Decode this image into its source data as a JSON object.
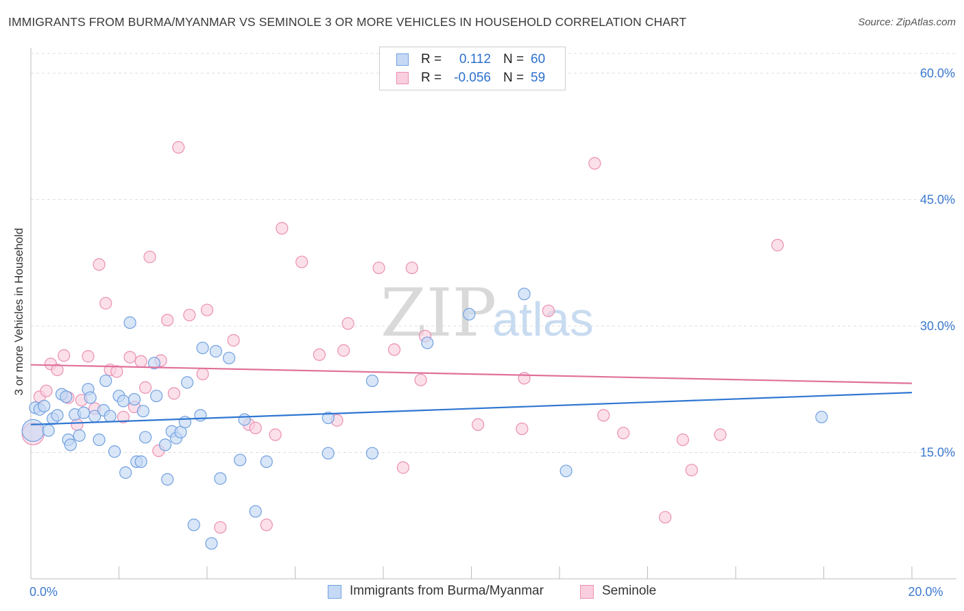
{
  "title": "IMMIGRANTS FROM BURMA/MYANMAR VS SEMINOLE 3 OR MORE VEHICLES IN HOUSEHOLD CORRELATION CHART",
  "source": "Source: ZipAtlas.com",
  "watermark": {
    "zip": "ZIP",
    "atlas": "atlas"
  },
  "stats": {
    "rows": [
      {
        "r_label": "R =",
        "r_value": "0.112",
        "n_label": "N =",
        "n_value": "60",
        "color": "#6fa0e0",
        "fill": "#c5d9f5"
      },
      {
        "r_label": "R =",
        "r_value": "-0.056",
        "n_label": "N =",
        "n_value": "59",
        "color": "#eb8fb0",
        "fill": "#f9cfdf"
      }
    ]
  },
  "legend": {
    "blue_label": "Immigrants from Burma/Myanmar",
    "pink_label": "Seminole"
  },
  "chart_data": {
    "type": "scatter",
    "title": "IMMIGRANTS FROM BURMA/MYANMAR VS SEMINOLE 3 OR MORE VEHICLES IN HOUSEHOLD CORRELATION CHART",
    "xlabel": "",
    "ylabel": "3 or more Vehicles in Household",
    "xlim": [
      0,
      20
    ],
    "ylim": [
      0,
      63
    ],
    "x_tick_labels": [
      {
        "value": 0,
        "label": "0.0%"
      },
      {
        "value": 20,
        "label": "20.0%"
      }
    ],
    "y_tick_labels": [
      {
        "value": 15,
        "label": "15.0%"
      },
      {
        "value": 30,
        "label": "30.0%"
      },
      {
        "value": 45,
        "label": "45.0%"
      },
      {
        "value": 60,
        "label": "60.0%"
      }
    ],
    "grid": true,
    "series": [
      {
        "name": "Immigrants from Burma/Myanmar",
        "color": "#2f76d2",
        "marker_fill": "#c5d9f5",
        "marker_stroke": "#6fa0e0",
        "trend": {
          "x": [
            0,
            20
          ],
          "y": [
            18.3,
            22.1
          ]
        },
        "points": [
          {
            "x": 0.05,
            "y": 17.6,
            "big": true
          },
          {
            "x": 0.1,
            "y": 20.3
          },
          {
            "x": 0.2,
            "y": 20.1
          },
          {
            "x": 0.3,
            "y": 20.5
          },
          {
            "x": 0.4,
            "y": 17.6
          },
          {
            "x": 0.5,
            "y": 19.0
          },
          {
            "x": 0.6,
            "y": 19.4
          },
          {
            "x": 0.7,
            "y": 21.9
          },
          {
            "x": 0.8,
            "y": 21.6
          },
          {
            "x": 0.85,
            "y": 16.5
          },
          {
            "x": 0.9,
            "y": 15.9
          },
          {
            "x": 1.0,
            "y": 19.5
          },
          {
            "x": 1.1,
            "y": 17.0
          },
          {
            "x": 1.2,
            "y": 19.7
          },
          {
            "x": 1.3,
            "y": 22.5
          },
          {
            "x": 1.35,
            "y": 21.5
          },
          {
            "x": 1.45,
            "y": 19.3
          },
          {
            "x": 1.55,
            "y": 16.5
          },
          {
            "x": 1.65,
            "y": 20.0
          },
          {
            "x": 1.7,
            "y": 23.5
          },
          {
            "x": 1.8,
            "y": 19.3
          },
          {
            "x": 1.9,
            "y": 15.1
          },
          {
            "x": 2.0,
            "y": 21.7
          },
          {
            "x": 2.1,
            "y": 21.1
          },
          {
            "x": 2.15,
            "y": 12.6
          },
          {
            "x": 2.25,
            "y": 30.4
          },
          {
            "x": 2.35,
            "y": 21.3
          },
          {
            "x": 2.4,
            "y": 13.9
          },
          {
            "x": 2.5,
            "y": 13.9
          },
          {
            "x": 2.55,
            "y": 19.9
          },
          {
            "x": 2.6,
            "y": 16.8
          },
          {
            "x": 2.8,
            "y": 25.6
          },
          {
            "x": 2.85,
            "y": 21.7
          },
          {
            "x": 3.05,
            "y": 15.9
          },
          {
            "x": 3.1,
            "y": 11.8
          },
          {
            "x": 3.2,
            "y": 17.5
          },
          {
            "x": 3.3,
            "y": 16.7
          },
          {
            "x": 3.4,
            "y": 17.4
          },
          {
            "x": 3.5,
            "y": 18.6
          },
          {
            "x": 3.55,
            "y": 23.3
          },
          {
            "x": 3.7,
            "y": 6.4
          },
          {
            "x": 3.85,
            "y": 19.4
          },
          {
            "x": 3.9,
            "y": 27.4
          },
          {
            "x": 4.1,
            "y": 4.2
          },
          {
            "x": 4.2,
            "y": 27.0
          },
          {
            "x": 4.3,
            "y": 11.9
          },
          {
            "x": 4.5,
            "y": 26.2
          },
          {
            "x": 4.75,
            "y": 14.1
          },
          {
            "x": 4.85,
            "y": 18.9
          },
          {
            "x": 5.1,
            "y": 8.0
          },
          {
            "x": 5.35,
            "y": 13.9
          },
          {
            "x": 6.75,
            "y": 19.1
          },
          {
            "x": 6.75,
            "y": 14.9
          },
          {
            "x": 7.75,
            "y": 23.5
          },
          {
            "x": 7.75,
            "y": 14.9
          },
          {
            "x": 9.0,
            "y": 28.0
          },
          {
            "x": 9.95,
            "y": 31.4
          },
          {
            "x": 11.2,
            "y": 33.8
          },
          {
            "x": 12.15,
            "y": 12.8
          },
          {
            "x": 17.95,
            "y": 19.2
          }
        ]
      },
      {
        "name": "Seminole",
        "color": "#e0709a",
        "marker_fill": "#f9cfdf",
        "marker_stroke": "#eb8fb0",
        "trend": {
          "x": [
            0,
            20
          ],
          "y": [
            25.4,
            23.2
          ]
        },
        "points": [
          {
            "x": 0.05,
            "y": 17.2,
            "big": true
          },
          {
            "x": 0.2,
            "y": 21.6
          },
          {
            "x": 0.35,
            "y": 22.3
          },
          {
            "x": 0.45,
            "y": 25.5
          },
          {
            "x": 0.6,
            "y": 24.8
          },
          {
            "x": 0.75,
            "y": 26.5
          },
          {
            "x": 0.85,
            "y": 21.5
          },
          {
            "x": 1.05,
            "y": 18.3
          },
          {
            "x": 1.15,
            "y": 21.2
          },
          {
            "x": 1.3,
            "y": 26.4
          },
          {
            "x": 1.45,
            "y": 20.2
          },
          {
            "x": 1.55,
            "y": 37.3
          },
          {
            "x": 1.7,
            "y": 32.7
          },
          {
            "x": 1.8,
            "y": 24.8
          },
          {
            "x": 1.95,
            "y": 24.6
          },
          {
            "x": 2.1,
            "y": 19.2
          },
          {
            "x": 2.25,
            "y": 26.3
          },
          {
            "x": 2.35,
            "y": 20.4
          },
          {
            "x": 2.5,
            "y": 25.8
          },
          {
            "x": 2.6,
            "y": 22.7
          },
          {
            "x": 2.7,
            "y": 38.2
          },
          {
            "x": 2.9,
            "y": 15.2
          },
          {
            "x": 2.95,
            "y": 25.9
          },
          {
            "x": 3.1,
            "y": 30.7
          },
          {
            "x": 3.25,
            "y": 22.0
          },
          {
            "x": 3.35,
            "y": 51.2
          },
          {
            "x": 3.6,
            "y": 31.3
          },
          {
            "x": 3.9,
            "y": 24.3
          },
          {
            "x": 4.0,
            "y": 31.9
          },
          {
            "x": 4.3,
            "y": 6.1
          },
          {
            "x": 4.6,
            "y": 28.3
          },
          {
            "x": 4.95,
            "y": 18.3
          },
          {
            "x": 5.1,
            "y": 17.9
          },
          {
            "x": 5.35,
            "y": 6.4
          },
          {
            "x": 5.55,
            "y": 17.1
          },
          {
            "x": 5.7,
            "y": 41.6
          },
          {
            "x": 6.15,
            "y": 37.6
          },
          {
            "x": 6.55,
            "y": 26.6
          },
          {
            "x": 6.95,
            "y": 18.8
          },
          {
            "x": 7.1,
            "y": 27.1
          },
          {
            "x": 7.2,
            "y": 30.3
          },
          {
            "x": 7.9,
            "y": 36.9
          },
          {
            "x": 8.25,
            "y": 27.2
          },
          {
            "x": 8.45,
            "y": 13.2
          },
          {
            "x": 8.65,
            "y": 36.9
          },
          {
            "x": 8.85,
            "y": 23.6
          },
          {
            "x": 8.95,
            "y": 28.8
          },
          {
            "x": 10.15,
            "y": 18.3
          },
          {
            "x": 11.15,
            "y": 17.8
          },
          {
            "x": 11.2,
            "y": 23.8
          },
          {
            "x": 11.75,
            "y": 31.8
          },
          {
            "x": 12.8,
            "y": 49.3
          },
          {
            "x": 13.0,
            "y": 19.4
          },
          {
            "x": 13.45,
            "y": 17.3
          },
          {
            "x": 14.4,
            "y": 7.3
          },
          {
            "x": 14.8,
            "y": 16.5
          },
          {
            "x": 15.0,
            "y": 12.9
          },
          {
            "x": 15.65,
            "y": 17.1
          },
          {
            "x": 16.95,
            "y": 39.6
          }
        ]
      }
    ]
  }
}
